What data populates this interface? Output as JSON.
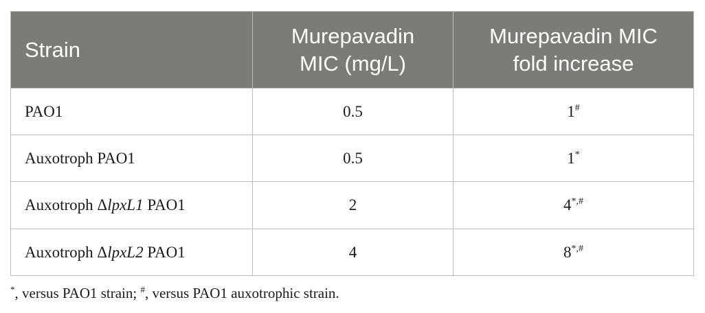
{
  "table": {
    "headers": {
      "strain": "Strain",
      "mic_line1": "Murepavadin",
      "mic_line2": "MIC (mg/L)",
      "fold_line1": "Murepavadin MIC",
      "fold_line2": "fold increase"
    },
    "rows": [
      {
        "strain_prefix": "PAO1",
        "strain_gene": "",
        "strain_suffix": "",
        "mic": "0.5",
        "fold_value": "1",
        "fold_marks": "#"
      },
      {
        "strain_prefix": "Auxotroph PAO1",
        "strain_gene": "",
        "strain_suffix": "",
        "mic": "0.5",
        "fold_value": "1",
        "fold_marks": "*"
      },
      {
        "strain_prefix": "Auxotroph Δ",
        "strain_gene": "lpxL1",
        "strain_suffix": " PAO1",
        "mic": "2",
        "fold_value": "4",
        "fold_marks": "*,#"
      },
      {
        "strain_prefix": "Auxotroph Δ",
        "strain_gene": "lpxL2",
        "strain_suffix": " PAO1",
        "mic": "4",
        "fold_value": "8",
        "fold_marks": "*,#"
      }
    ]
  },
  "footnote": {
    "mark1": "*",
    "text1": ", versus PAO1 strain; ",
    "mark2": "#",
    "text2": ", versus PAO1 auxotrophic strain."
  }
}
